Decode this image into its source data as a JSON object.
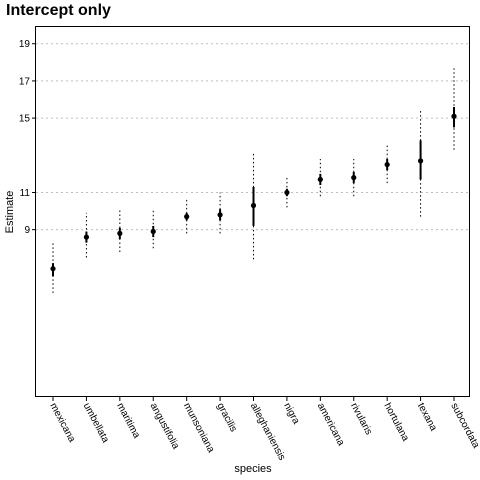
{
  "chart_data": {
    "type": "scatter",
    "title": "Intercept only",
    "xlabel": "species",
    "ylabel": "Estimate",
    "categories": [
      "mexicana",
      "umbellata",
      "maritima",
      "angustifolia",
      "munsoniana",
      "gracilis",
      "alleghaniensis",
      "nigra",
      "americana",
      "rivularis",
      "hortulana",
      "texana",
      "subcordata"
    ],
    "estimate": [
      6.9,
      8.6,
      8.8,
      8.9,
      9.7,
      9.8,
      10.3,
      11.0,
      11.7,
      11.8,
      12.5,
      12.7,
      15.1
    ],
    "inner_lower": [
      6.5,
      8.3,
      8.5,
      8.6,
      9.5,
      9.5,
      9.2,
      10.8,
      11.4,
      11.5,
      12.2,
      11.7,
      14.5
    ],
    "inner_upper": [
      7.2,
      8.9,
      9.1,
      9.2,
      9.9,
      10.1,
      11.3,
      11.2,
      12.0,
      12.1,
      12.8,
      13.8,
      15.6
    ],
    "outer_lower": [
      5.6,
      7.5,
      7.8,
      8.0,
      8.8,
      8.8,
      7.4,
      10.2,
      10.8,
      10.8,
      11.5,
      9.7,
      13.3
    ],
    "outer_upper": [
      8.4,
      9.9,
      10.1,
      10.1,
      10.6,
      11.0,
      13.2,
      11.9,
      12.8,
      12.8,
      13.6,
      15.5,
      17.7
    ],
    "yticks": [
      9,
      11,
      15,
      17,
      19
    ],
    "ylim": [
      0,
      19.9
    ],
    "grid": "horizontal dotted"
  }
}
